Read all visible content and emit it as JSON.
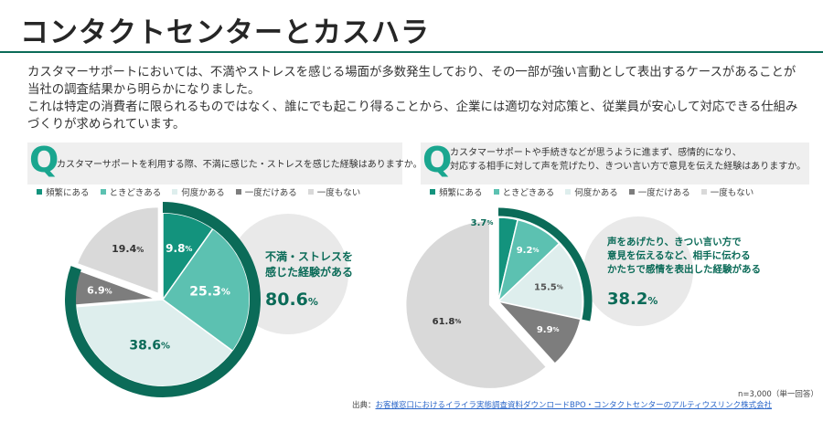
{
  "title": "コンタクトセンターとカスハラ",
  "intro": [
    "カスタマーサポートにおいては、不満やストレスを感じる場面が多数発生しており、その一部が強い言動として表出するケースがあることが当社の調査結果から明らかになりました。",
    "これは特定の消費者に限られるものではなく、誰にでも起こり得ることから、企業には適切な対応策と、従業員が安心して対応できる仕組みづくりが求められています。"
  ],
  "legend": [
    "頻繁にある",
    "ときどきある",
    "何度かある",
    "一度だけある",
    "一度もない"
  ],
  "colors": {
    "accent": "#0b6b58",
    "series": [
      "#13937d",
      "#5cc1b1",
      "#deeeed",
      "#7d7d7d",
      "#d9d9d9"
    ],
    "bubble": "#e9e9e9"
  },
  "charts": [
    {
      "question_lines": [
        "カスタマーサポートを利用する際、不満に感じた・ストレスを感じた経験はありますか。"
      ],
      "callout_lines": [
        "不満・ストレスを",
        "感じた経験がある"
      ],
      "callout_value": "80.6",
      "callout_unit": "%"
    },
    {
      "question_lines": [
        "カスタマーサポートや手続きなどが思うように進まず、感情的になり、",
        "対応する相手に対して声を荒げたり、きつい言い方で意見を伝えた経験はありますか。"
      ],
      "callout_lines": [
        "声をあげたり、きつい言い方で",
        "意見を伝えるなど、相手に伝わる",
        "かたちで感情を表出した経験がある"
      ],
      "callout_value": "38.2",
      "callout_unit": "%"
    }
  ],
  "chart_data": [
    {
      "type": "pie",
      "categories": [
        "頻繁にある",
        "ときどきある",
        "何度かある",
        "一度だけある",
        "一度もない"
      ],
      "values": [
        9.8,
        25.3,
        38.6,
        6.9,
        19.4
      ],
      "labels": [
        "9.8",
        "25.3",
        "38.6",
        "6.9",
        "19.4"
      ],
      "unit": "%"
    },
    {
      "type": "pie",
      "categories": [
        "頻繁にある",
        "ときどきある",
        "何度かある",
        "一度だけある",
        "一度もない"
      ],
      "values": [
        3.7,
        9.2,
        15.5,
        9.9,
        61.8
      ],
      "labels": [
        "3.7",
        "9.2",
        "15.5",
        "9.9",
        "61.8"
      ],
      "unit": "%"
    }
  ],
  "note": "n=3,000（単一回答）",
  "source_prefix": "出典：",
  "source_link": "お客様窓口におけるイライラ実態調査資料ダウンロードBPO・コンタクトセンターのアルティウスリンク株式会社"
}
